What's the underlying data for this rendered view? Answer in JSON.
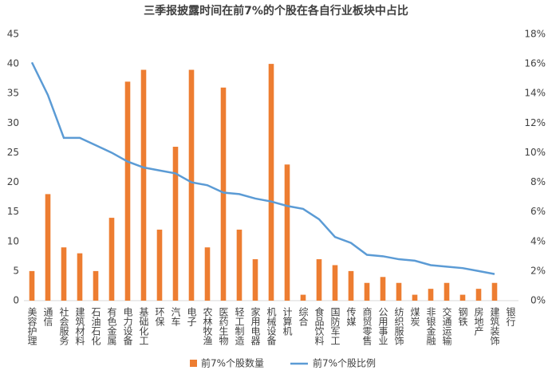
{
  "chart_data": {
    "type": "bar_line",
    "title": "三季报披露时间在前7%的个股在各自行业板块中占比",
    "categories": [
      "美容护理",
      "通信",
      "社会服务",
      "建筑材料",
      "石油石化",
      "有色金属",
      "电力设备",
      "基础化工",
      "环保",
      "汽车",
      "电子",
      "农林牧渔",
      "医药生物",
      "轻工制造",
      "家用电器",
      "机械设备",
      "计算机",
      "综合",
      "食品饮料",
      "国防军工",
      "传媒",
      "商贸零售",
      "公用事业",
      "纺织服饰",
      "煤炭",
      "非银金融",
      "交通运输",
      "钢铁",
      "房地产",
      "建筑装饰",
      "银行"
    ],
    "series": [
      {
        "name": "前7%个股数量",
        "color": "#ed7d31",
        "type": "bar",
        "values": [
          5,
          18,
          9,
          8,
          5,
          14,
          37,
          39,
          12,
          26,
          39,
          9,
          36,
          12,
          7,
          40,
          23,
          1,
          7,
          6,
          5,
          3,
          4,
          3,
          1,
          2,
          3,
          1,
          2,
          3,
          0
        ]
      },
      {
        "name": "前7%个股比例",
        "color": "#5b9bd5",
        "type": "line",
        "axis": "y2",
        "values": [
          16.1,
          13.9,
          11.0,
          11.0,
          10.5,
          10.0,
          9.4,
          9.0,
          8.8,
          8.6,
          8.0,
          7.8,
          7.3,
          7.2,
          6.9,
          6.7,
          6.4,
          6.2,
          5.5,
          4.3,
          3.9,
          3.1,
          3.0,
          2.8,
          2.7,
          2.4,
          2.3,
          2.2,
          2.0,
          1.8,
          null
        ]
      }
    ],
    "ylim": [
      0,
      45
    ],
    "yticks": [
      0,
      5,
      10,
      15,
      20,
      25,
      30,
      35,
      40,
      45
    ],
    "y2lim": [
      0,
      18
    ],
    "y2ticks": [
      {
        "value": 0,
        "label": "0%"
      },
      {
        "value": 2,
        "label": "2%"
      },
      {
        "value": 4,
        "label": "4%"
      },
      {
        "value": 6,
        "label": "6%"
      },
      {
        "value": 8,
        "label": "8%"
      },
      {
        "value": 10,
        "label": "10%"
      },
      {
        "value": 12,
        "label": "12%"
      },
      {
        "value": 14,
        "label": "14%"
      },
      {
        "value": 16,
        "label": "16%"
      },
      {
        "value": 18,
        "label": "18%"
      }
    ],
    "grid": false,
    "legend": "bottom"
  }
}
